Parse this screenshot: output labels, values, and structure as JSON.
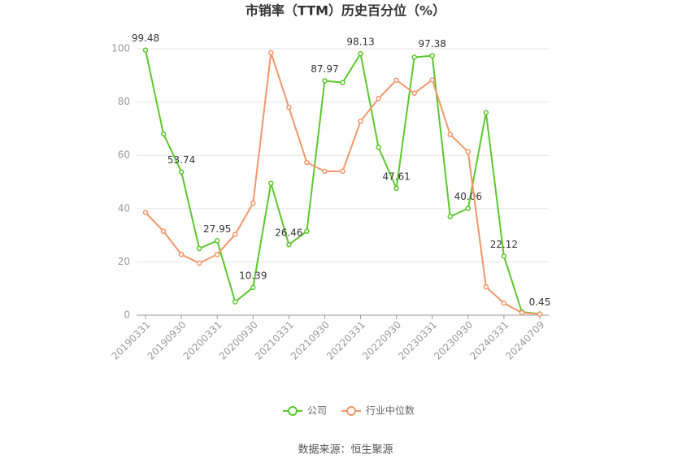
{
  "chart_data": {
    "type": "line",
    "title": "市销率（TTM）历史百分位（%）",
    "source": "数据来源：恒生聚源",
    "categories": [
      "20190331",
      null,
      "20190930",
      null,
      "20200331",
      null,
      "20200930",
      null,
      "20210331",
      null,
      "20210930",
      null,
      "20220331",
      null,
      "20220930",
      null,
      "20230331",
      null,
      "20230930",
      null,
      "20240331",
      null,
      "20240709"
    ],
    "series": [
      {
        "name": "公司",
        "color": "#5cc72c",
        "values": [
          99.48,
          68,
          53.74,
          25,
          27.95,
          5,
          10.39,
          49.5,
          26.46,
          31.5,
          87.97,
          87.3,
          98.13,
          63,
          47.61,
          96.8,
          97.38,
          37,
          40.06,
          76,
          22.12,
          1.2,
          0.45
        ],
        "value_labels": [
          "99.48",
          null,
          "53.74",
          null,
          "27.95",
          null,
          "10.39",
          null,
          "26.46",
          null,
          "87.97",
          null,
          "98.13",
          null,
          "47.61",
          null,
          "97.38",
          null,
          "40.06",
          null,
          "22.12",
          null,
          "0.45"
        ]
      },
      {
        "name": "行业中位数",
        "color": "#f3956b",
        "values": [
          38.5,
          31.5,
          22.8,
          19.5,
          22.8,
          30.3,
          42,
          98.5,
          78,
          57.3,
          54,
          54,
          72.8,
          81.3,
          88.2,
          83.3,
          88.3,
          67.8,
          61.3,
          10.6,
          4.5,
          0.9,
          0.4
        ]
      }
    ],
    "ylim": [
      0,
      100
    ],
    "yticks": [
      0,
      20,
      40,
      60,
      80,
      100
    ],
    "grid": true,
    "legend": "bottom"
  }
}
